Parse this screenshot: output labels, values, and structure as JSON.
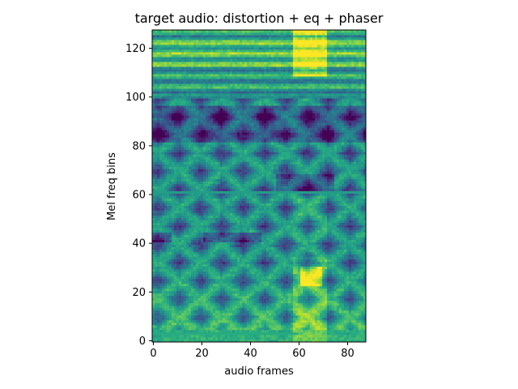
{
  "chart_data": {
    "type": "heatmap",
    "title": "target audio: distortion + eq + phaser",
    "xlabel": "audio frames",
    "ylabel": "Mel freq bins",
    "xlim": [
      -0.5,
      87.5
    ],
    "ylim": [
      -0.5,
      127.5
    ],
    "xticks": [
      0,
      20,
      40,
      60,
      80
    ],
    "yticks": [
      0,
      20,
      40,
      60,
      80,
      100,
      120
    ],
    "n_frames": 88,
    "n_bins": 128,
    "colormap": "viridis",
    "grid": false,
    "legend": "none",
    "description_values": {
      "bright_frame_band": [
        60,
        70
      ],
      "dark_bands": [
        [
          80,
          96
        ],
        [
          42,
          44
        ]
      ],
      "flat_line_bin": 61,
      "low_flat_line_bin": 3,
      "criss_cross_region": [
        5,
        100
      ]
    }
  },
  "colors": {
    "background": "#ffffff",
    "axis": "#000000",
    "viridis_low": "#440154",
    "viridis_mid": "#21918c",
    "viridis_high": "#fde725"
  }
}
